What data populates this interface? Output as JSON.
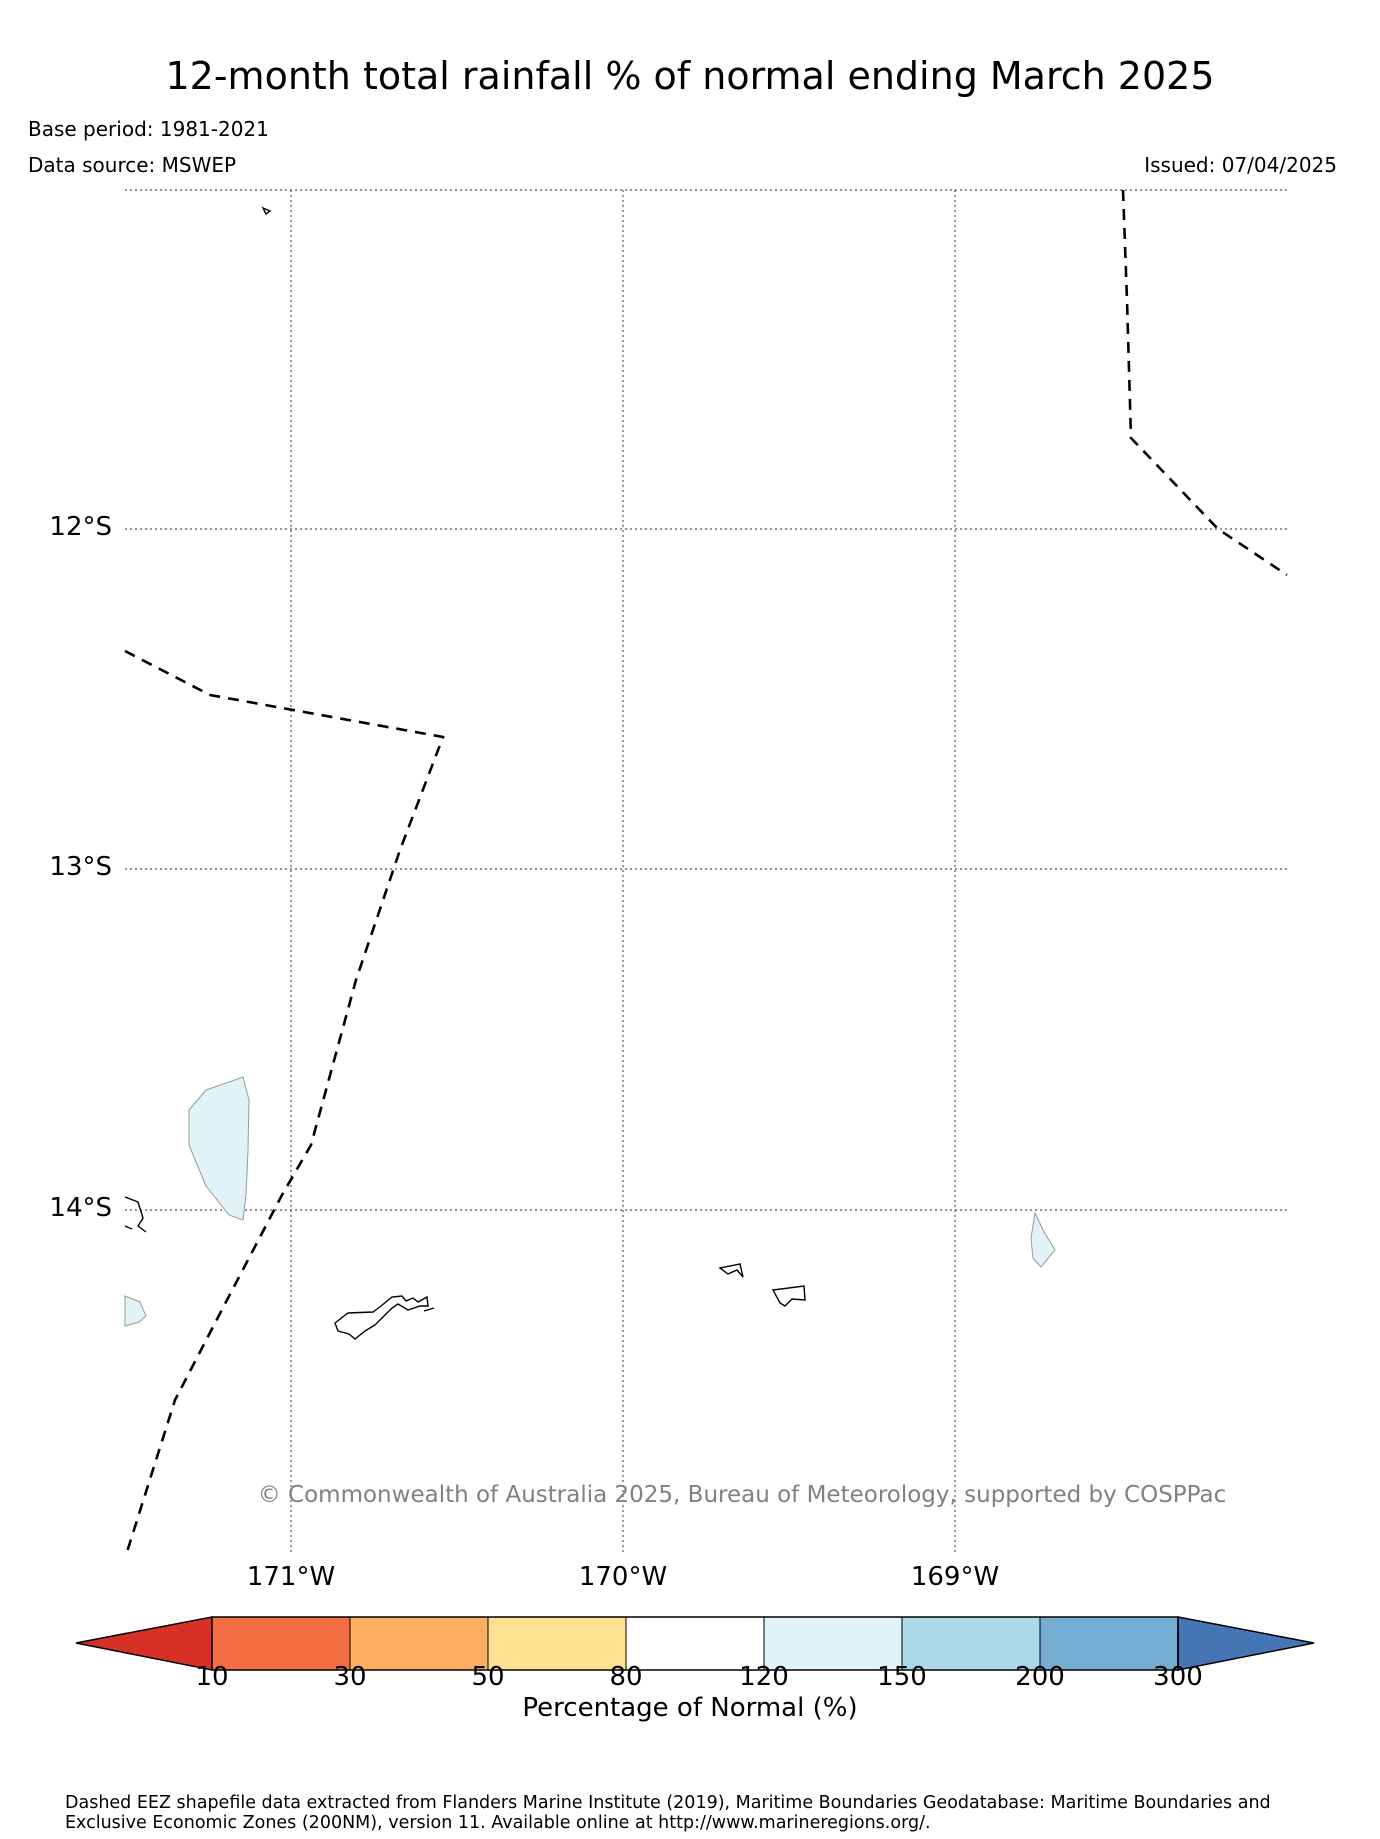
{
  "header": {
    "title": "12-month total rainfall % of normal ending March 2025",
    "base_period": "Base period: 1981-2021",
    "data_source": "Data source: MSWEP",
    "issued": "Issued: 07/04/2025"
  },
  "map": {
    "lat_labels": [
      "12°S",
      "13°S",
      "14°S"
    ],
    "lon_labels": [
      "171°W",
      "170°W",
      "169°W"
    ],
    "copyright": "© Commonwealth of Australia 2025, Bureau of Meteorology, supported by COSPPac",
    "gridline_style": "dotted",
    "eez_style": "dashed"
  },
  "colorbar": {
    "label": "Percentage of Normal (%)",
    "ticks": [
      "10",
      "30",
      "50",
      "80",
      "120",
      "150",
      "200",
      "300"
    ],
    "colors": {
      "below_10": "#d73027",
      "10_30": "#f46d43",
      "30_50": "#fdae61",
      "50_80": "#fee090",
      "80_120": "#ffffff",
      "120_150": "#e0f3f8",
      "150_200": "#abd9e9",
      "200_300": "#74add1",
      "above_300": "#4575b4"
    }
  },
  "footer": {
    "text": "Dashed EEZ shapefile data extracted from Flanders Marine Institute (2019), Maritime Boundaries Geodatabase: Maritime Boundaries and Exclusive Economic Zones (200NM), version 11. Available online at http://www.marineregions.org/."
  }
}
